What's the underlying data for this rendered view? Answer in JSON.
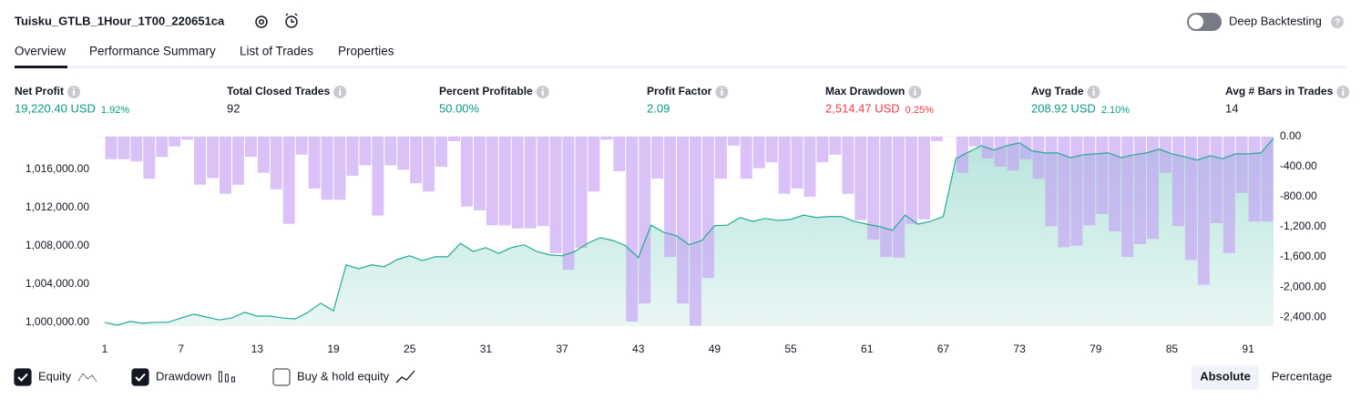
{
  "header": {
    "title": "Tuisku_GTLB_1Hour_1T00_220651ca",
    "deep_backtesting": "Deep Backtesting"
  },
  "tabs": [
    "Overview",
    "Performance Summary",
    "List of Trades",
    "Properties"
  ],
  "metrics": [
    {
      "label": "Net Profit",
      "value": "19,220.40 USD",
      "percent": "1.92%"
    },
    {
      "label": "Total Closed Trades",
      "value": "92"
    },
    {
      "label": "Percent Profitable",
      "value": "50.00%"
    },
    {
      "label": "Profit Factor",
      "value": "2.09"
    },
    {
      "label": "Max Drawdown",
      "value": "2,514.47 USD",
      "percent": "0.25%"
    },
    {
      "label": "Avg Trade",
      "value": "208.92 USD",
      "percent": "2.10%"
    },
    {
      "label": "Avg # Bars in Trades",
      "value": "14"
    }
  ],
  "chart_data": {
    "type": "combo",
    "series": [
      {
        "name": "Equity",
        "type": "area",
        "color": "#22ab94",
        "checked": true,
        "x": [
          1,
          2,
          3,
          4,
          5,
          6,
          7,
          8,
          9,
          10,
          11,
          12,
          13,
          14,
          15,
          16,
          17,
          18,
          19,
          20,
          21,
          22,
          23,
          24,
          25,
          26,
          27,
          28,
          29,
          30,
          31,
          32,
          33,
          34,
          35,
          36,
          37,
          38,
          39,
          40,
          41,
          42,
          43,
          44,
          45,
          46,
          47,
          48,
          49,
          50,
          51,
          52,
          53,
          54,
          55,
          56,
          57,
          58,
          59,
          60,
          61,
          62,
          63,
          64,
          65,
          66,
          67,
          68,
          69,
          70,
          71,
          72,
          73,
          74,
          75,
          76,
          77,
          78,
          79,
          80,
          81,
          82,
          83,
          84,
          85,
          86,
          87,
          88,
          89,
          90,
          91,
          92,
          93
        ],
        "values": [
          1000000,
          999700,
          1000100,
          999900,
          1000000,
          1000000,
          1000450,
          1000850,
          1000550,
          1000250,
          1000450,
          1001050,
          1000650,
          1000650,
          1000450,
          1000350,
          1001050,
          1002000,
          1001200,
          1006000,
          1005600,
          1006000,
          1005800,
          1006550,
          1006950,
          1006450,
          1006850,
          1006850,
          1008250,
          1007400,
          1007800,
          1007200,
          1007800,
          1008100,
          1007400,
          1007050,
          1006950,
          1007400,
          1008250,
          1008850,
          1008550,
          1008000,
          1006750,
          1010150,
          1009400,
          1009050,
          1008100,
          1008550,
          1010100,
          1010150,
          1010950,
          1010550,
          1010850,
          1010650,
          1010750,
          1011200,
          1010950,
          1011050,
          1011050,
          1010550,
          1010250,
          1010000,
          1009600,
          1011200,
          1010250,
          1010550,
          1011050,
          1017100,
          1017800,
          1018450,
          1018000,
          1018450,
          1018750,
          1017900,
          1017700,
          1017700,
          1017200,
          1017500,
          1017600,
          1017700,
          1017200,
          1017500,
          1017700,
          1018100,
          1017600,
          1017300,
          1016950,
          1017400,
          1017100,
          1017600,
          1017600,
          1017700,
          1019220.4
        ]
      },
      {
        "name": "Drawdown",
        "type": "bar",
        "axis": "y2",
        "color": "#c49cf5",
        "checked": true,
        "x": [
          1,
          2,
          3,
          4,
          5,
          6,
          7,
          8,
          9,
          10,
          11,
          12,
          13,
          14,
          15,
          16,
          17,
          18,
          19,
          20,
          21,
          22,
          23,
          24,
          25,
          26,
          27,
          28,
          29,
          30,
          31,
          32,
          33,
          34,
          35,
          36,
          37,
          38,
          39,
          40,
          41,
          42,
          43,
          44,
          45,
          46,
          47,
          48,
          49,
          50,
          51,
          52,
          53,
          54,
          55,
          56,
          57,
          58,
          59,
          60,
          61,
          62,
          63,
          64,
          65,
          66,
          67,
          68,
          69,
          70,
          71,
          72,
          73,
          74,
          75,
          76,
          77,
          78,
          79,
          80,
          81,
          82,
          83,
          84,
          85,
          86,
          87,
          88,
          89,
          90,
          91,
          92
        ],
        "values": [
          -300,
          -300,
          -330,
          -560,
          -270,
          -130,
          -40,
          -640,
          -550,
          -760,
          -640,
          -270,
          -480,
          -700,
          -1160,
          -240,
          -690,
          -840,
          -840,
          -520,
          -380,
          -1050,
          -380,
          -440,
          -620,
          -730,
          -400,
          -60,
          -930,
          -980,
          -1180,
          -1180,
          -1220,
          -1220,
          -1190,
          -1550,
          -1770,
          -1480,
          -730,
          -40,
          -460,
          -2460,
          -2220,
          -560,
          -1600,
          -2220,
          -2514.47,
          -1880,
          -560,
          -120,
          -560,
          -420,
          -340,
          -760,
          -690,
          -800,
          -340,
          -240,
          -760,
          -1110,
          -1370,
          -1600,
          -1610,
          -1160,
          -1100,
          -60,
          0,
          -480,
          -130,
          -290,
          -400,
          -450,
          -300,
          -560,
          -1190,
          -1470,
          -1450,
          -1180,
          -1030,
          -1260,
          -1600,
          -1430,
          -1360,
          -480,
          -1190,
          -1640,
          -1970,
          -1150,
          -1550,
          -750,
          -1130,
          -1130
        ]
      }
    ],
    "xlim": [
      1,
      93
    ],
    "xticks": [
      1,
      7,
      13,
      19,
      25,
      31,
      37,
      43,
      49,
      55,
      61,
      67,
      73,
      79,
      85,
      91
    ],
    "ylim": [
      999600,
      1019400
    ],
    "yticks": [
      {
        "value": 1000000,
        "label": "1,000,000.00"
      },
      {
        "value": 1004000,
        "label": "1,004,000.00"
      },
      {
        "value": 1008000,
        "label": "1,008,000.00"
      },
      {
        "value": 1012000,
        "label": "1,012,000.00"
      },
      {
        "value": 1016000,
        "label": "1,016,000.00"
      }
    ],
    "y2lim": [
      -2520,
      0
    ],
    "y2ticks": [
      {
        "value": 0,
        "label": "0.00"
      },
      {
        "value": -400,
        "label": "-400.00"
      },
      {
        "value": -800,
        "label": "-800.00"
      },
      {
        "value": -1200,
        "label": "-1,200.00"
      },
      {
        "value": -1600,
        "label": "-1,600.00"
      },
      {
        "value": -2000,
        "label": "-2,000.00"
      },
      {
        "value": -2400,
        "label": "-2,400.00"
      }
    ],
    "buy_hold": {
      "label": "Buy & hold equity",
      "checked": false
    }
  },
  "scale_options": [
    "Absolute",
    "Percentage"
  ]
}
